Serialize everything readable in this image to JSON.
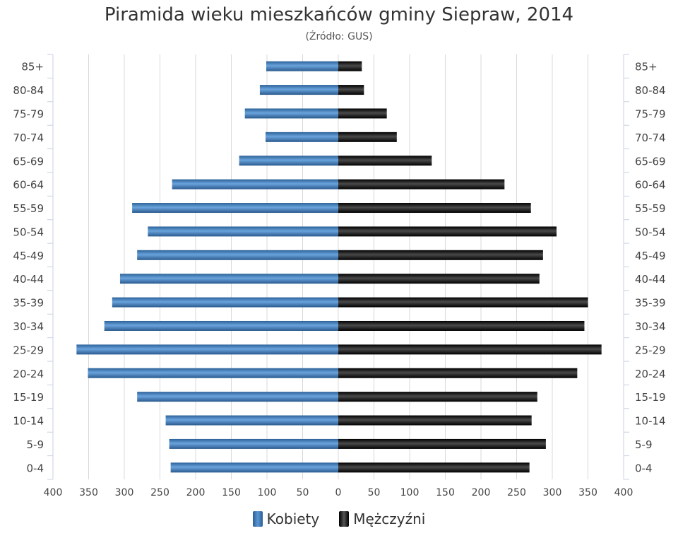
{
  "chart_data": {
    "type": "bar",
    "orientation": "horizontal",
    "title": "Piramida wieku mieszkańców gminy Siepraw, 2014",
    "subtitle": "(Źródło: GUS)",
    "categories": [
      "0-4",
      "5-9",
      "10-14",
      "15-19",
      "20-24",
      "25-29",
      "30-34",
      "35-39",
      "40-44",
      "45-49",
      "50-54",
      "55-59",
      "60-64",
      "65-69",
      "70-74",
      "75-79",
      "80-84",
      "85+"
    ],
    "series": [
      {
        "name": "Kobiety",
        "color": "#3f7ec0",
        "values": [
          235,
          237,
          242,
          282,
          351,
          367,
          328,
          317,
          306,
          282,
          267,
          289,
          233,
          139,
          102,
          131,
          110,
          101
        ]
      },
      {
        "name": "Mężczyźni",
        "color": "#111111",
        "values": [
          268,
          291,
          271,
          279,
          335,
          369,
          345,
          350,
          282,
          287,
          306,
          270,
          233,
          131,
          82,
          68,
          36,
          33
        ]
      }
    ],
    "x_ticks": [
      "400",
      "350",
      "300",
      "250",
      "200",
      "150",
      "100",
      "50",
      "0",
      "50",
      "100",
      "150",
      "200",
      "250",
      "300",
      "350",
      "400"
    ],
    "xlim": [
      -400,
      400
    ],
    "grid": true,
    "legend_position": "bottom"
  }
}
